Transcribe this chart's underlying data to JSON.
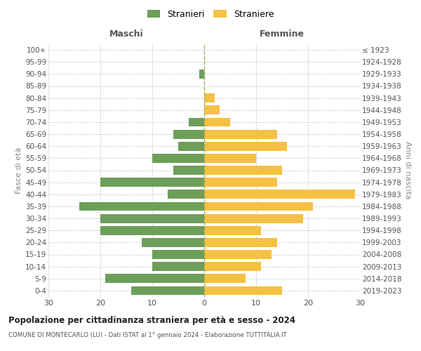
{
  "age_groups": [
    "100+",
    "95-99",
    "90-94",
    "85-89",
    "80-84",
    "75-79",
    "70-74",
    "65-69",
    "60-64",
    "55-59",
    "50-54",
    "45-49",
    "40-44",
    "35-39",
    "30-34",
    "25-29",
    "20-24",
    "15-19",
    "10-14",
    "5-9",
    "0-4"
  ],
  "birth_years": [
    "≤ 1923",
    "1924-1928",
    "1929-1933",
    "1934-1938",
    "1939-1943",
    "1944-1948",
    "1949-1953",
    "1954-1958",
    "1959-1963",
    "1964-1968",
    "1969-1973",
    "1974-1978",
    "1979-1983",
    "1984-1988",
    "1989-1993",
    "1994-1998",
    "1999-2003",
    "2004-2008",
    "2009-2013",
    "2014-2018",
    "2019-2023"
  ],
  "maschi": [
    0,
    0,
    1,
    0,
    0,
    0,
    3,
    6,
    5,
    10,
    6,
    20,
    7,
    24,
    20,
    20,
    12,
    10,
    10,
    19,
    14
  ],
  "femmine": [
    0,
    0,
    0,
    0,
    2,
    3,
    5,
    14,
    16,
    10,
    15,
    14,
    29,
    21,
    19,
    11,
    14,
    13,
    11,
    8,
    15
  ],
  "color_maschi": "#6d9e5a",
  "color_femmine": "#f5c142",
  "title": "Popolazione per cittadinanza straniera per età e sesso - 2024",
  "subtitle": "COMUNE DI MONTECARLO (LU) - Dati ISTAT al 1° gennaio 2024 - Elaborazione TUTTITALIA.IT",
  "label_left": "Maschi",
  "label_right": "Femmine",
  "ylabel_left": "Fasce di età",
  "ylabel_right": "Anni di nascita",
  "legend_maschi": "Stranieri",
  "legend_femmine": "Straniere",
  "xlim": 30,
  "bg_color": "#ffffff",
  "grid_color": "#d0d0d0"
}
